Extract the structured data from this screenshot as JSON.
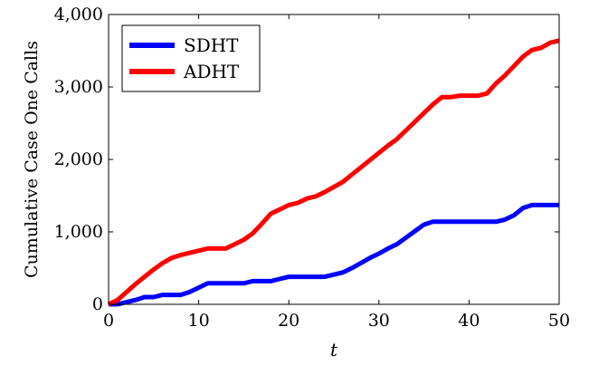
{
  "chart_data": {
    "type": "line",
    "title": "",
    "xlabel": "t",
    "ylabel": "Cumulative Case One Calls",
    "xlim": [
      0,
      50
    ],
    "ylim": [
      0,
      4000
    ],
    "xticks": [
      0,
      10,
      20,
      30,
      40,
      50
    ],
    "yticks": [
      0,
      1000,
      2000,
      3000,
      4000
    ],
    "xtick_labels": [
      "0",
      "10",
      "20",
      "30",
      "40",
      "50"
    ],
    "ytick_labels": [
      "0",
      "1,000",
      "2,000",
      "3,000",
      "4,000"
    ],
    "grid": false,
    "legend_position": "top-left",
    "series": [
      {
        "name": "SDHT",
        "color": "#0000ff",
        "x": [
          0,
          1,
          2,
          3,
          4,
          5,
          6,
          7,
          8,
          9,
          10,
          11,
          12,
          13,
          14,
          15,
          16,
          17,
          18,
          19,
          20,
          21,
          22,
          23,
          24,
          25,
          26,
          27,
          28,
          29,
          30,
          31,
          32,
          33,
          34,
          35,
          36,
          37,
          38,
          39,
          40,
          41,
          42,
          43,
          44,
          45,
          46,
          47,
          48,
          49,
          50
        ],
        "values": [
          0,
          0,
          30,
          60,
          100,
          100,
          130,
          130,
          130,
          170,
          230,
          290,
          290,
          290,
          290,
          290,
          320,
          320,
          320,
          350,
          380,
          380,
          380,
          380,
          380,
          410,
          440,
          500,
          570,
          640,
          700,
          770,
          830,
          920,
          1010,
          1100,
          1140,
          1140,
          1140,
          1140,
          1140,
          1140,
          1140,
          1140,
          1170,
          1230,
          1330,
          1370,
          1370,
          1370,
          1370
        ]
      },
      {
        "name": "ADHT",
        "color": "#ff0000",
        "x": [
          0,
          1,
          2,
          3,
          4,
          5,
          6,
          7,
          8,
          9,
          10,
          11,
          12,
          13,
          14,
          15,
          16,
          17,
          18,
          19,
          20,
          21,
          22,
          23,
          24,
          25,
          26,
          27,
          28,
          29,
          30,
          31,
          32,
          33,
          34,
          35,
          36,
          37,
          38,
          39,
          40,
          41,
          42,
          43,
          44,
          45,
          46,
          47,
          48,
          49,
          50
        ],
        "values": [
          0,
          60,
          170,
          280,
          380,
          480,
          570,
          640,
          680,
          710,
          740,
          770,
          770,
          770,
          830,
          890,
          980,
          1110,
          1250,
          1310,
          1370,
          1400,
          1460,
          1490,
          1550,
          1620,
          1690,
          1790,
          1890,
          1990,
          2090,
          2190,
          2280,
          2400,
          2520,
          2640,
          2760,
          2860,
          2860,
          2880,
          2880,
          2880,
          2910,
          3050,
          3160,
          3290,
          3420,
          3510,
          3540,
          3610,
          3640
        ]
      }
    ]
  }
}
